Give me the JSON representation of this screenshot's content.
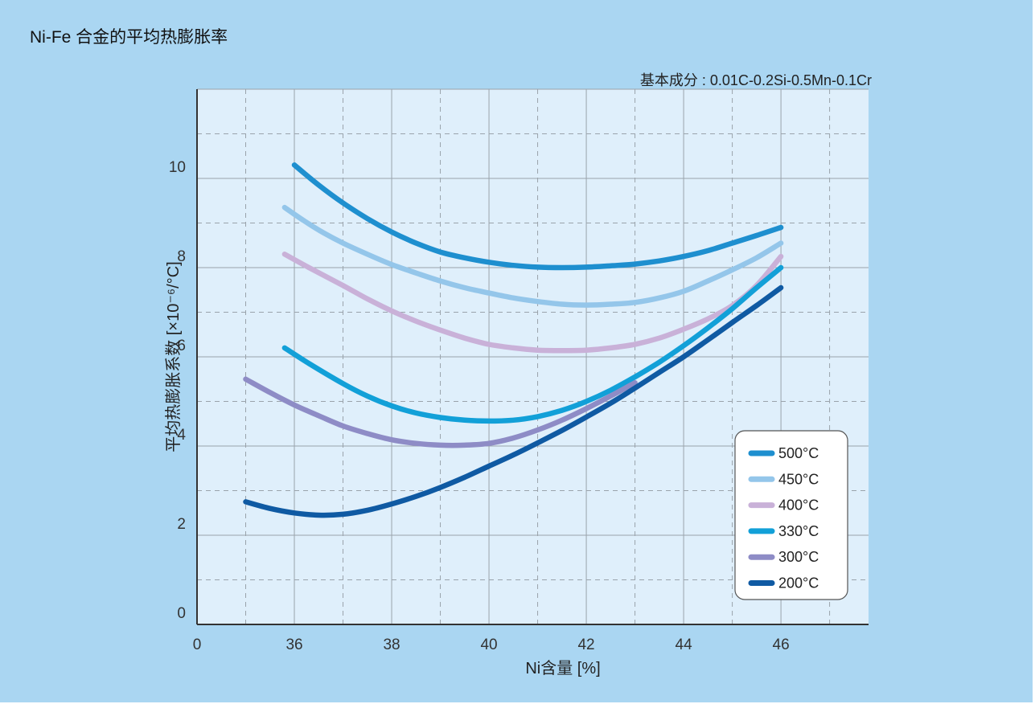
{
  "chart_data": {
    "type": "line",
    "title": "Ni-Fe 合金的平均热膨胀率",
    "subtitle": "基本成分 : 0.01C-0.2Si-0.5Mn-0.1Cr",
    "xlabel": "Ni含量 [%]",
    "ylabel": "平均热膨胀系数 [×10⁻⁶/°C]",
    "x_tick_labels": [
      "0",
      "36",
      "38",
      "40",
      "42",
      "44",
      "46"
    ],
    "y_tick_labels": [
      "0",
      "2",
      "4",
      "6",
      "8",
      "10"
    ],
    "xlim": [
      34,
      47.8
    ],
    "ylim": [
      0,
      12
    ],
    "grid": true,
    "legend_position": "bottom-right",
    "series": [
      {
        "name": "500°C",
        "color": "#1e8fcf",
        "x": [
          36,
          36.5,
          37,
          37.5,
          38,
          38.5,
          39,
          39.5,
          40,
          40.5,
          41,
          41.5,
          42,
          42.5,
          43,
          43.5,
          44,
          44.5,
          45,
          45.5,
          46
        ],
        "y": [
          10.3,
          9.85,
          9.45,
          9.1,
          8.8,
          8.55,
          8.35,
          8.22,
          8.12,
          8.05,
          8.01,
          8.0,
          8.01,
          8.04,
          8.08,
          8.15,
          8.25,
          8.38,
          8.55,
          8.72,
          8.9
        ]
      },
      {
        "name": "450°C",
        "color": "#94c6ea",
        "x": [
          35.8,
          36.2,
          36.6,
          37,
          37.5,
          38,
          38.5,
          39,
          39.5,
          40,
          40.5,
          41,
          41.5,
          42,
          42.5,
          43,
          43.5,
          44,
          44.5,
          45,
          45.5,
          46
        ],
        "y": [
          9.35,
          9.05,
          8.78,
          8.55,
          8.3,
          8.07,
          7.88,
          7.7,
          7.55,
          7.43,
          7.32,
          7.24,
          7.18,
          7.16,
          7.18,
          7.22,
          7.32,
          7.47,
          7.7,
          7.95,
          8.22,
          8.55
        ]
      },
      {
        "name": "400°C",
        "color": "#c9b1d8",
        "x": [
          35.8,
          36.3,
          37,
          37.5,
          38,
          38.5,
          39,
          39.5,
          40,
          40.5,
          41,
          41.5,
          42,
          42.5,
          43,
          43.5,
          44,
          44.5,
          45,
          45.5,
          46
        ],
        "y": [
          8.3,
          8.0,
          7.6,
          7.3,
          7.03,
          6.8,
          6.6,
          6.42,
          6.28,
          6.2,
          6.15,
          6.14,
          6.15,
          6.2,
          6.28,
          6.42,
          6.62,
          6.85,
          7.15,
          7.6,
          8.25
        ]
      },
      {
        "name": "330°C",
        "color": "#12a0d8",
        "x": [
          35.8,
          36.3,
          37,
          37.5,
          38,
          38.5,
          39,
          39.5,
          40,
          40.5,
          41,
          41.5,
          42,
          42.5,
          43,
          43.5,
          44,
          44.5,
          45,
          45.5,
          46
        ],
        "y": [
          6.2,
          5.85,
          5.4,
          5.12,
          4.9,
          4.74,
          4.64,
          4.58,
          4.56,
          4.58,
          4.66,
          4.8,
          5.0,
          5.25,
          5.55,
          5.88,
          6.25,
          6.65,
          7.08,
          7.55,
          8.0
        ]
      },
      {
        "name": "300°C",
        "color": "#8e8cc6",
        "x": [
          35.0,
          35.5,
          36,
          36.5,
          37,
          37.5,
          38,
          38.5,
          39,
          39.5,
          40,
          40.5,
          41,
          41.5,
          42,
          42.5,
          43
        ],
        "y": [
          5.5,
          5.2,
          4.92,
          4.68,
          4.45,
          4.28,
          4.14,
          4.06,
          4.02,
          4.02,
          4.06,
          4.18,
          4.36,
          4.58,
          4.84,
          5.12,
          5.42
        ]
      },
      {
        "name": "200°C",
        "color": "#0f5aa3",
        "x": [
          35.0,
          35.5,
          36,
          36.5,
          37,
          37.5,
          38,
          38.5,
          39,
          39.5,
          40,
          40.5,
          41,
          41.5,
          42,
          42.5,
          43,
          43.5,
          44,
          44.5,
          45,
          45.5,
          46
        ],
        "y": [
          2.75,
          2.6,
          2.5,
          2.45,
          2.47,
          2.56,
          2.7,
          2.87,
          3.07,
          3.3,
          3.55,
          3.8,
          4.07,
          4.35,
          4.65,
          4.96,
          5.3,
          5.65,
          6.0,
          6.38,
          6.77,
          7.15,
          7.55
        ]
      }
    ]
  }
}
